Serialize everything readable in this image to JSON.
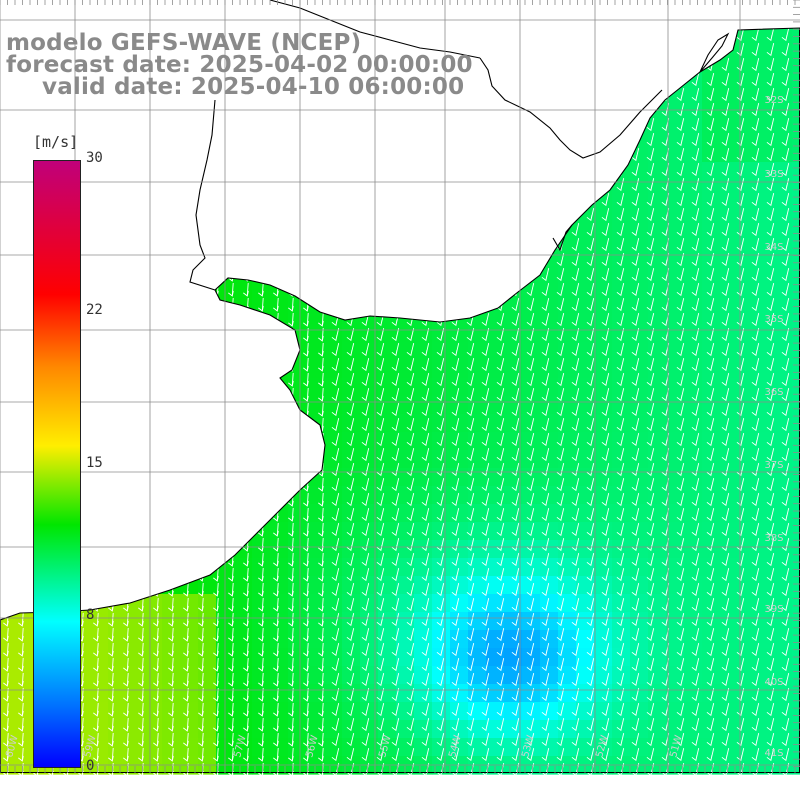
{
  "title": {
    "line1": "modelo GEFS-WAVE (NCEP)",
    "line2": "forecast date: 2025-04-02 00:00:00",
    "line3": "valid date: 2025-04-10 06:00:00"
  },
  "colorbar": {
    "unit": "[m/s]",
    "ticks": [
      "30",
      "22",
      "15",
      "8",
      "0"
    ],
    "range": [
      0,
      30
    ],
    "colors": [
      "#0000ff",
      "#0070ff",
      "#00ffff",
      "#00e600",
      "#ffee00",
      "#ff8800",
      "#ff0000",
      "#c0007a"
    ]
  },
  "lat_labels": [
    "32S",
    "33S",
    "34S",
    "35S",
    "36S",
    "37S",
    "38S",
    "39S",
    "40S",
    "41S"
  ],
  "lon_labels": [
    "60W",
    "59W",
    "57W",
    "56W",
    "55W",
    "54W",
    "53W",
    "52W",
    "51W"
  ],
  "map": {
    "field": "wind speed",
    "wind_direction": "from north-northeast, pointing south-southwest",
    "land_color": "#ffffff",
    "coast_color": "#000000",
    "grid_color": "#8c8c8c"
  }
}
